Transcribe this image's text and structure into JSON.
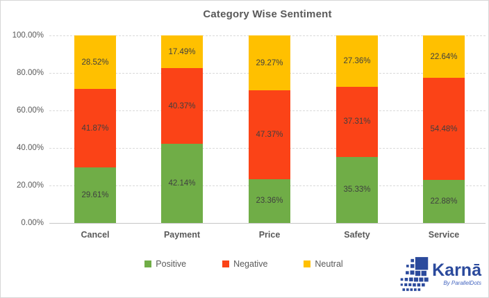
{
  "chart_data": {
    "type": "bar",
    "stacked": true,
    "title": "Category Wise Sentiment",
    "categories": [
      "Cancel",
      "Payment",
      "Price",
      "Safety",
      "Service"
    ],
    "series": [
      {
        "name": "Positive",
        "color": "#70AD47",
        "values": [
          29.61,
          42.14,
          23.36,
          35.33,
          22.88
        ]
      },
      {
        "name": "Negative",
        "color": "#FB4317",
        "values": [
          41.87,
          40.37,
          47.37,
          37.31,
          54.48
        ]
      },
      {
        "name": "Neutral",
        "color": "#FFC000",
        "values": [
          28.52,
          17.49,
          29.27,
          27.36,
          22.64
        ]
      }
    ],
    "value_suffix": "%",
    "data_label_decimals": 2,
    "y_ticks": [
      "100.00%",
      "80.00%",
      "60.00%",
      "40.00%",
      "20.00%",
      "0.00%"
    ],
    "ylim": [
      0,
      100
    ],
    "grid": "horizontal-dashed",
    "legend_position": "bottom"
  },
  "colors": {
    "positive": "#70AD47",
    "negative": "#FB4317",
    "neutral": "#FFC000",
    "title_text": "#595959",
    "axis_text": "#595959",
    "bar_label_text": "#3F3F3F",
    "gridline": "#D9D9D9",
    "logo_blue": "#2B4A9C"
  },
  "logo": {
    "brand": "Karnā",
    "subtitle": "By ParallelDots"
  }
}
